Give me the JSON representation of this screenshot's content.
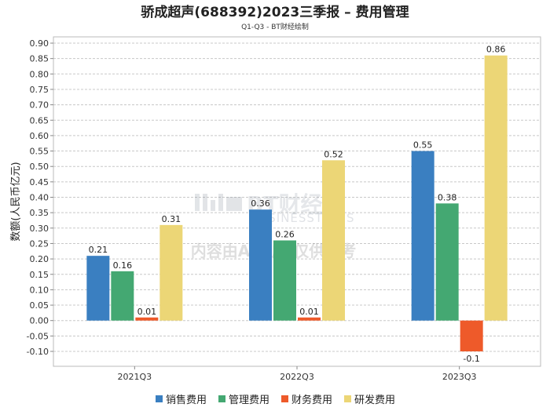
{
  "chart_data": {
    "type": "bar",
    "title": "骄成超声(688392)2023三季报 – 费用管理",
    "subtitle": "Q1-Q3 - BT财经绘制",
    "ylabel": "数额(人民币亿元)",
    "xlabel": "",
    "categories": [
      "2021Q3",
      "2022Q3",
      "2023Q3"
    ],
    "ylim": [
      -0.12,
      0.9
    ],
    "yticks": [
      "0.90",
      "0.85",
      "0.80",
      "0.75",
      "0.70",
      "0.65",
      "0.60",
      "0.55",
      "0.50",
      "0.45",
      "0.40",
      "0.35",
      "0.30",
      "0.25",
      "0.20",
      "0.15",
      "0.10",
      "0.05",
      "0.00",
      "-0.05",
      "-0.10"
    ],
    "series": [
      {
        "name": "销售费用",
        "color": "#3a7fc1",
        "values": [
          0.21,
          0.36,
          0.55
        ],
        "labels": [
          "0.21",
          "0.36",
          "0.55"
        ]
      },
      {
        "name": "管理费用",
        "color": "#44a872",
        "values": [
          0.16,
          0.26,
          0.38
        ],
        "labels": [
          "0.16",
          "0.26",
          "0.38"
        ]
      },
      {
        "name": "财务费用",
        "color": "#ee5a2a",
        "values": [
          0.01,
          0.01,
          -0.1
        ],
        "labels": [
          "0.01",
          "0.01",
          "-0.1"
        ]
      },
      {
        "name": "研发费用",
        "color": "#ecd676",
        "values": [
          0.31,
          0.52,
          0.86
        ],
        "labels": [
          "0.31",
          "0.52",
          "0.86"
        ]
      }
    ],
    "grid": true,
    "legend_position": "bottom"
  },
  "watermark": {
    "logo": "BT财经",
    "logo_sub": "BUSINESSTIMES",
    "notice": "内容由AI生成,仅供参考"
  }
}
